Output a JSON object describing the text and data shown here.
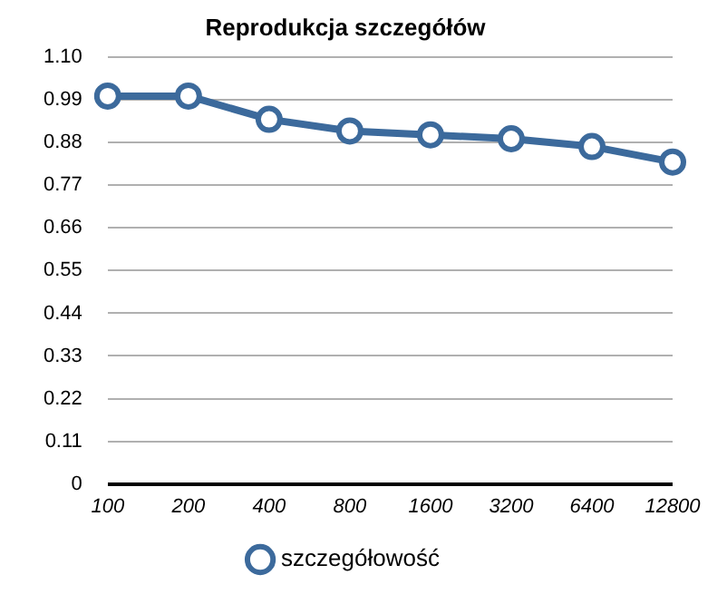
{
  "chart_data": {
    "type": "line",
    "title": "Reprodukcja szczegółów",
    "categories": [
      "100",
      "200",
      "400",
      "800",
      "1600",
      "3200",
      "6400",
      "12800"
    ],
    "series": [
      {
        "name": "szczegółowość",
        "color": "#3c6a9c",
        "values": [
          1.0,
          1.0,
          0.94,
          0.91,
          0.9,
          0.89,
          0.87,
          0.83
        ]
      }
    ],
    "ylim": [
      0,
      1.1
    ],
    "yticks": [
      0,
      0.11,
      0.22,
      0.33,
      0.44,
      0.55,
      0.66,
      0.77,
      0.88,
      0.99,
      {
        "value": 1.1,
        "label": "1.10"
      }
    ],
    "grid": "y",
    "legend": "bottom",
    "marker": "circle",
    "line_style": "solid"
  }
}
